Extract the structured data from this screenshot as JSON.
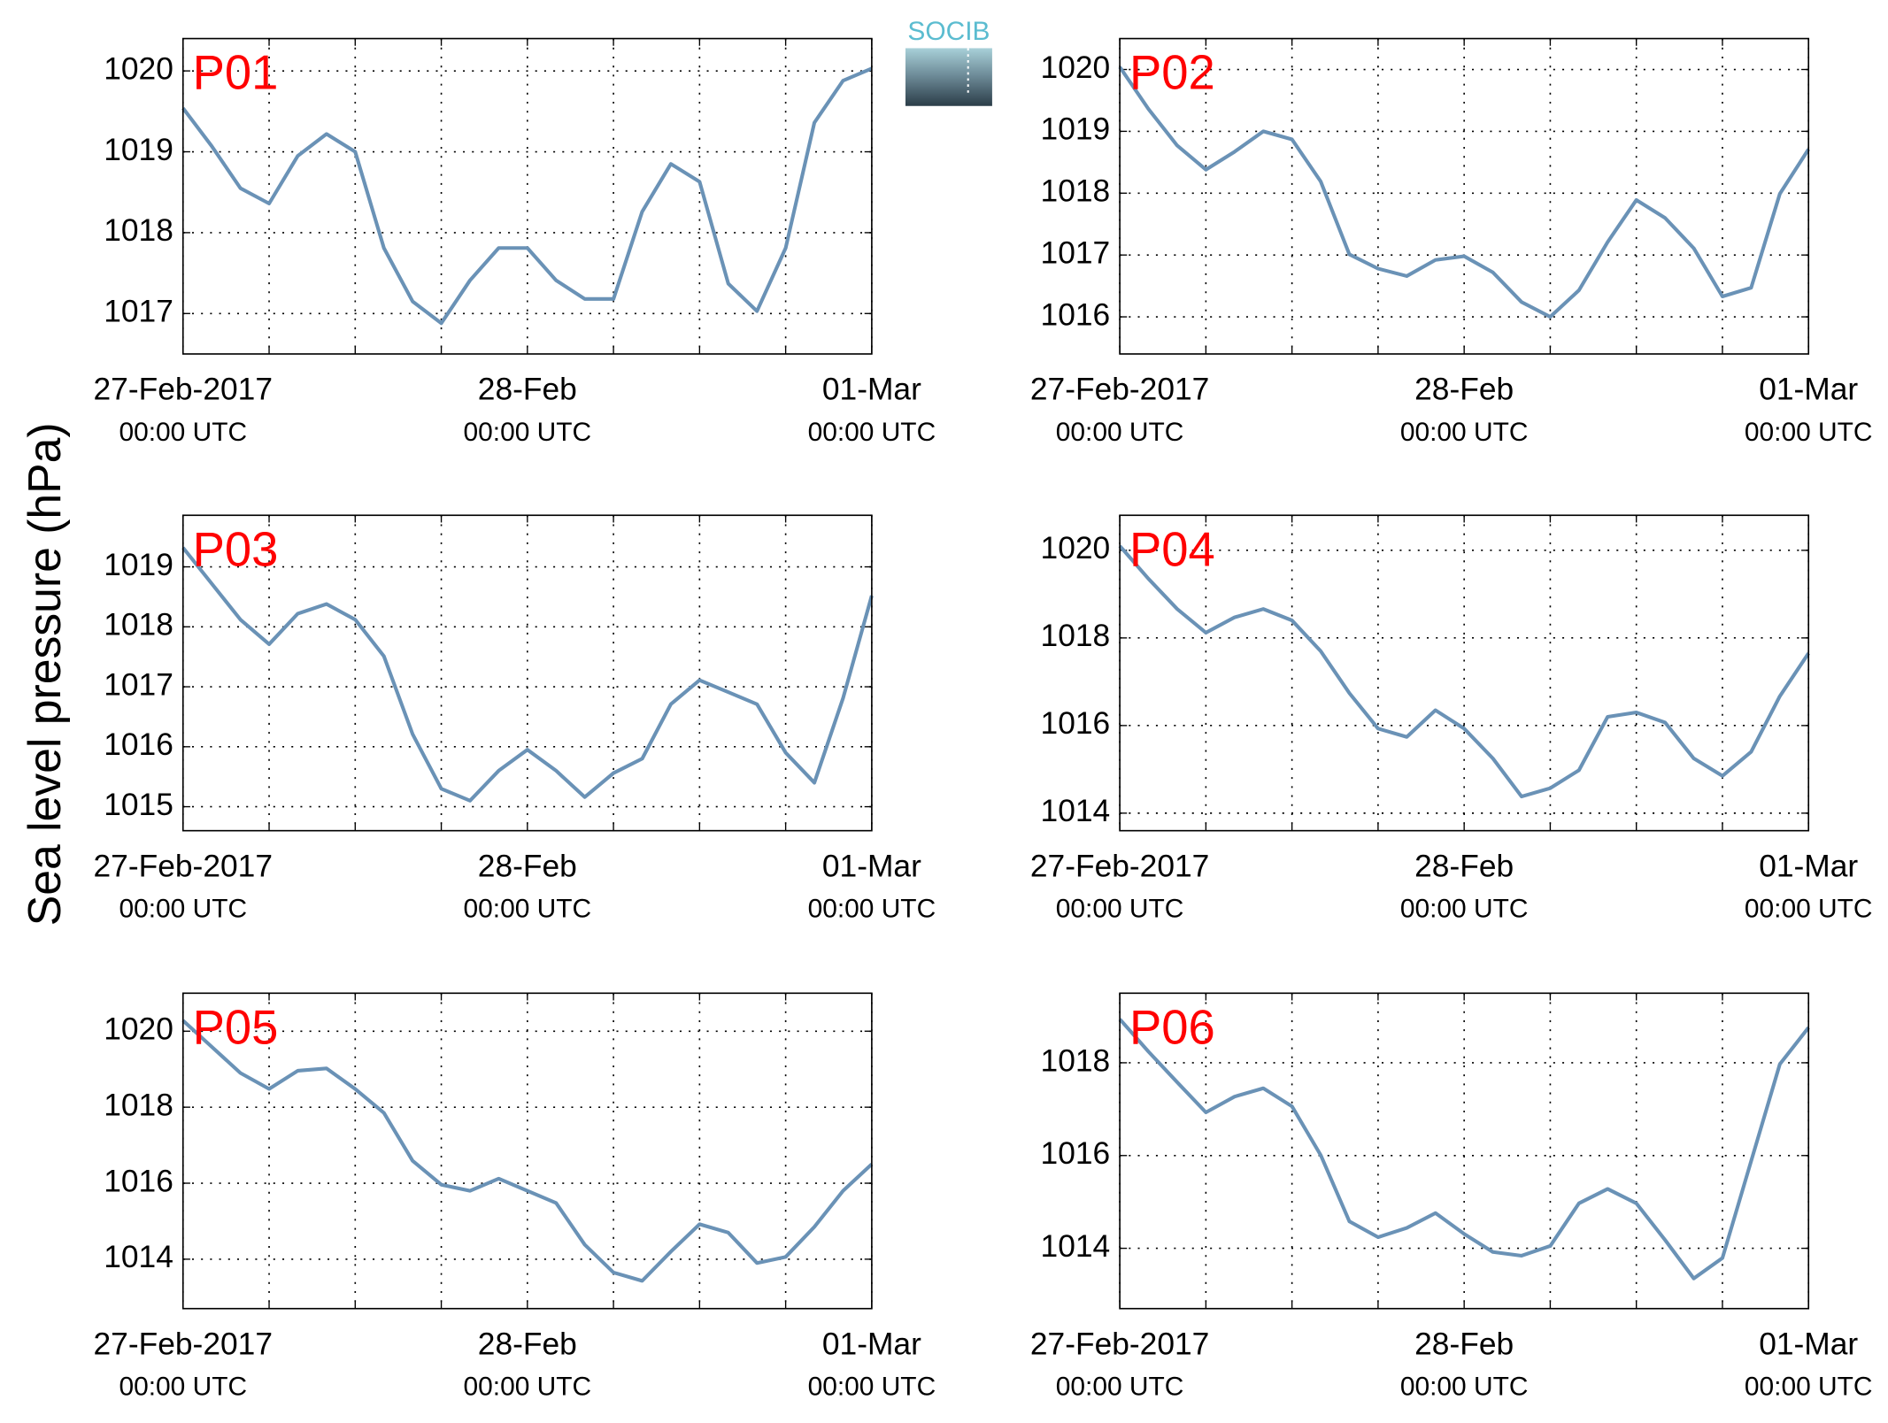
{
  "ylabel": "Sea level pressure (hPa)",
  "logo": "SOCIB",
  "chart_data": [
    {
      "type": "line",
      "title": "P01",
      "color": "#6a92b6",
      "grid": true,
      "x": [
        "2017-02-27T00:00",
        "2017-02-27T02:00",
        "2017-02-27T04:00",
        "2017-02-27T06:00",
        "2017-02-27T08:00",
        "2017-02-27T10:00",
        "2017-02-27T12:00",
        "2017-02-27T14:00",
        "2017-02-27T16:00",
        "2017-02-27T18:00",
        "2017-02-27T20:00",
        "2017-02-27T22:00",
        "2017-02-28T00:00",
        "2017-02-28T02:00",
        "2017-02-28T04:00",
        "2017-02-28T06:00",
        "2017-02-28T08:00",
        "2017-02-28T10:00",
        "2017-02-28T12:00",
        "2017-02-28T14:00",
        "2017-02-28T16:00",
        "2017-02-28T18:00",
        "2017-02-28T20:00",
        "2017-02-28T22:00",
        "2017-03-01T00:00"
      ],
      "series": [
        {
          "color": "#6a92b6",
          "values": [
            1019.54,
            1019.07,
            1018.55,
            1018.36,
            1018.95,
            1019.22,
            1019.0,
            1017.81,
            1017.15,
            1016.88,
            1017.41,
            1017.81,
            1017.81,
            1017.41,
            1017.18,
            1017.18,
            1018.26,
            1018.85,
            1018.63,
            1017.37,
            1017.03,
            1017.81,
            1019.36,
            1019.88,
            1020.03
          ]
        }
      ],
      "xlim": [
        "2017-02-27T00:00",
        "2017-03-01T00:00"
      ],
      "xticks": [
        {
          "value": "2017-02-27T00:00",
          "label": [
            "27-Feb-2017",
            "00:00 UTC"
          ]
        },
        {
          "value": "2017-02-27T06:00",
          "label": null
        },
        {
          "value": "2017-02-27T12:00",
          "label": null
        },
        {
          "value": "2017-02-27T18:00",
          "label": null
        },
        {
          "value": "2017-02-28T00:00",
          "label": [
            "28-Feb",
            "00:00 UTC"
          ]
        },
        {
          "value": "2017-02-28T06:00",
          "label": null
        },
        {
          "value": "2017-02-28T12:00",
          "label": null
        },
        {
          "value": "2017-02-28T18:00",
          "label": null
        },
        {
          "value": "2017-03-01T00:00",
          "label": [
            "01-Mar",
            "00:00 UTC"
          ]
        }
      ],
      "ylim": [
        1016.5,
        1020.4
      ],
      "yticks": [
        1017,
        1018,
        1019,
        1020
      ]
    },
    {
      "type": "line",
      "title": "P02",
      "color": "#6a92b6",
      "grid": true,
      "x": [
        "2017-02-27T00:00",
        "2017-02-27T02:00",
        "2017-02-27T04:00",
        "2017-02-27T06:00",
        "2017-02-27T08:00",
        "2017-02-27T10:00",
        "2017-02-27T12:00",
        "2017-02-27T14:00",
        "2017-02-27T16:00",
        "2017-02-27T18:00",
        "2017-02-27T20:00",
        "2017-02-27T22:00",
        "2017-02-28T00:00",
        "2017-02-28T02:00",
        "2017-02-28T04:00",
        "2017-02-28T06:00",
        "2017-02-28T08:00",
        "2017-02-28T10:00",
        "2017-02-28T12:00",
        "2017-02-28T14:00",
        "2017-02-28T16:00",
        "2017-02-28T18:00",
        "2017-02-28T20:00",
        "2017-02-28T22:00",
        "2017-03-01T00:00"
      ],
      "series": [
        {
          "color": "#6a92b6",
          "values": [
            1020.04,
            1019.36,
            1018.77,
            1018.38,
            1018.67,
            1019.0,
            1018.87,
            1018.19,
            1017.01,
            1016.78,
            1016.66,
            1016.92,
            1016.98,
            1016.72,
            1016.24,
            1016.0,
            1016.43,
            1017.21,
            1017.89,
            1017.6,
            1017.11,
            1016.33,
            1016.47,
            1017.99,
            1018.71
          ]
        }
      ],
      "xlim": [
        "2017-02-27T00:00",
        "2017-03-01T00:00"
      ],
      "xticks": [
        {
          "value": "2017-02-27T00:00",
          "label": [
            "27-Feb-2017",
            "00:00 UTC"
          ]
        },
        {
          "value": "2017-02-27T06:00",
          "label": null
        },
        {
          "value": "2017-02-27T12:00",
          "label": null
        },
        {
          "value": "2017-02-27T18:00",
          "label": null
        },
        {
          "value": "2017-02-28T00:00",
          "label": [
            "28-Feb",
            "00:00 UTC"
          ]
        },
        {
          "value": "2017-02-28T06:00",
          "label": null
        },
        {
          "value": "2017-02-28T12:00",
          "label": null
        },
        {
          "value": "2017-02-28T18:00",
          "label": null
        },
        {
          "value": "2017-03-01T00:00",
          "label": [
            "01-Mar",
            "00:00 UTC"
          ]
        }
      ],
      "ylim": [
        1015.4,
        1020.5
      ],
      "yticks": [
        1016,
        1017,
        1018,
        1019,
        1020
      ]
    },
    {
      "type": "line",
      "title": "P03",
      "color": "#6a92b6",
      "grid": true,
      "x": [
        "2017-02-27T00:00",
        "2017-02-27T02:00",
        "2017-02-27T04:00",
        "2017-02-27T06:00",
        "2017-02-27T08:00",
        "2017-02-27T10:00",
        "2017-02-27T12:00",
        "2017-02-27T14:00",
        "2017-02-27T16:00",
        "2017-02-27T18:00",
        "2017-02-27T20:00",
        "2017-02-27T22:00",
        "2017-02-28T00:00",
        "2017-02-28T02:00",
        "2017-02-28T04:00",
        "2017-02-28T06:00",
        "2017-02-28T08:00",
        "2017-02-28T10:00",
        "2017-02-28T12:00",
        "2017-02-28T14:00",
        "2017-02-28T16:00",
        "2017-02-28T18:00",
        "2017-02-28T20:00",
        "2017-02-28T22:00",
        "2017-03-01T00:00"
      ],
      "series": [
        {
          "color": "#6a92b6",
          "values": [
            1019.32,
            1018.72,
            1018.12,
            1017.71,
            1018.22,
            1018.38,
            1018.12,
            1017.51,
            1016.21,
            1015.3,
            1015.1,
            1015.6,
            1015.95,
            1015.6,
            1015.16,
            1015.56,
            1015.8,
            1016.71,
            1017.11,
            1016.91,
            1016.71,
            1015.9,
            1015.4,
            1016.81,
            1018.52
          ]
        }
      ],
      "xlim": [
        "2017-02-27T00:00",
        "2017-03-01T00:00"
      ],
      "xticks": [
        {
          "value": "2017-02-27T00:00",
          "label": [
            "27-Feb-2017",
            "00:00 UTC"
          ]
        },
        {
          "value": "2017-02-27T06:00",
          "label": null
        },
        {
          "value": "2017-02-27T12:00",
          "label": null
        },
        {
          "value": "2017-02-27T18:00",
          "label": null
        },
        {
          "value": "2017-02-28T00:00",
          "label": [
            "28-Feb",
            "00:00 UTC"
          ]
        },
        {
          "value": "2017-02-28T06:00",
          "label": null
        },
        {
          "value": "2017-02-28T12:00",
          "label": null
        },
        {
          "value": "2017-02-28T18:00",
          "label": null
        },
        {
          "value": "2017-03-01T00:00",
          "label": [
            "01-Mar",
            "00:00 UTC"
          ]
        }
      ],
      "ylim": [
        1014.6,
        1019.86
      ],
      "yticks": [
        1015,
        1016,
        1017,
        1018,
        1019
      ]
    },
    {
      "type": "line",
      "title": "P04",
      "color": "#6a92b6",
      "grid": true,
      "x": [
        "2017-02-27T00:00",
        "2017-02-27T02:00",
        "2017-02-27T04:00",
        "2017-02-27T06:00",
        "2017-02-27T08:00",
        "2017-02-27T10:00",
        "2017-02-27T12:00",
        "2017-02-27T14:00",
        "2017-02-27T16:00",
        "2017-02-27T18:00",
        "2017-02-27T20:00",
        "2017-02-27T22:00",
        "2017-02-28T00:00",
        "2017-02-28T02:00",
        "2017-02-28T04:00",
        "2017-02-28T06:00",
        "2017-02-28T08:00",
        "2017-02-28T10:00",
        "2017-02-28T12:00",
        "2017-02-28T14:00",
        "2017-02-28T16:00",
        "2017-02-28T18:00",
        "2017-02-28T20:00",
        "2017-02-28T22:00",
        "2017-03-01T00:00"
      ],
      "series": [
        {
          "color": "#6a92b6",
          "values": [
            1020.1,
            1019.35,
            1018.66,
            1018.12,
            1018.47,
            1018.66,
            1018.4,
            1017.7,
            1016.74,
            1015.93,
            1015.74,
            1016.35,
            1015.93,
            1015.25,
            1014.38,
            1014.57,
            1014.98,
            1016.2,
            1016.3,
            1016.07,
            1015.25,
            1014.85,
            1015.4,
            1016.67,
            1017.65
          ]
        }
      ],
      "xlim": [
        "2017-02-27T00:00",
        "2017-03-01T00:00"
      ],
      "xticks": [
        {
          "value": "2017-02-27T00:00",
          "label": [
            "27-Feb-2017",
            "00:00 UTC"
          ]
        },
        {
          "value": "2017-02-27T06:00",
          "label": null
        },
        {
          "value": "2017-02-27T12:00",
          "label": null
        },
        {
          "value": "2017-02-27T18:00",
          "label": null
        },
        {
          "value": "2017-02-28T00:00",
          "label": [
            "28-Feb",
            "00:00 UTC"
          ]
        },
        {
          "value": "2017-02-28T06:00",
          "label": null
        },
        {
          "value": "2017-02-28T12:00",
          "label": null
        },
        {
          "value": "2017-02-28T18:00",
          "label": null
        },
        {
          "value": "2017-03-01T00:00",
          "label": [
            "01-Mar",
            "00:00 UTC"
          ]
        }
      ],
      "ylim": [
        1013.6,
        1020.8
      ],
      "yticks": [
        1014,
        1016,
        1018,
        1020
      ]
    },
    {
      "type": "line",
      "title": "P05",
      "color": "#6a92b6",
      "grid": true,
      "x": [
        "2017-02-27T00:00",
        "2017-02-27T02:00",
        "2017-02-27T04:00",
        "2017-02-27T06:00",
        "2017-02-27T08:00",
        "2017-02-27T10:00",
        "2017-02-27T12:00",
        "2017-02-27T14:00",
        "2017-02-27T16:00",
        "2017-02-27T18:00",
        "2017-02-27T20:00",
        "2017-02-27T22:00",
        "2017-02-28T00:00",
        "2017-02-28T02:00",
        "2017-02-28T04:00",
        "2017-02-28T06:00",
        "2017-02-28T08:00",
        "2017-02-28T10:00",
        "2017-02-28T12:00",
        "2017-02-28T14:00",
        "2017-02-28T16:00",
        "2017-02-28T18:00",
        "2017-02-28T20:00",
        "2017-02-28T22:00",
        "2017-03-01T00:00"
      ],
      "series": [
        {
          "color": "#6a92b6",
          "values": [
            1020.28,
            1019.59,
            1018.9,
            1018.48,
            1018.96,
            1019.02,
            1018.48,
            1017.85,
            1016.59,
            1015.96,
            1015.8,
            1016.12,
            1015.8,
            1015.48,
            1014.38,
            1013.65,
            1013.43,
            1014.2,
            1014.92,
            1014.7,
            1013.9,
            1014.06,
            1014.85,
            1015.8,
            1016.5
          ]
        }
      ],
      "xlim": [
        "2017-02-27T00:00",
        "2017-03-01T00:00"
      ],
      "xticks": [
        {
          "value": "2017-02-27T00:00",
          "label": [
            "27-Feb-2017",
            "00:00 UTC"
          ]
        },
        {
          "value": "2017-02-27T06:00",
          "label": null
        },
        {
          "value": "2017-02-27T12:00",
          "label": null
        },
        {
          "value": "2017-02-27T18:00",
          "label": null
        },
        {
          "value": "2017-02-28T00:00",
          "label": [
            "28-Feb",
            "00:00 UTC"
          ]
        },
        {
          "value": "2017-02-28T06:00",
          "label": null
        },
        {
          "value": "2017-02-28T12:00",
          "label": null
        },
        {
          "value": "2017-02-28T18:00",
          "label": null
        },
        {
          "value": "2017-03-01T00:00",
          "label": [
            "01-Mar",
            "00:00 UTC"
          ]
        }
      ],
      "ylim": [
        1012.7,
        1021
      ],
      "yticks": [
        1014,
        1016,
        1018,
        1020
      ]
    },
    {
      "type": "line",
      "title": "P06",
      "color": "#6a92b6",
      "grid": true,
      "x": [
        "2017-02-27T00:00",
        "2017-02-27T02:00",
        "2017-02-27T04:00",
        "2017-02-27T06:00",
        "2017-02-27T08:00",
        "2017-02-27T10:00",
        "2017-02-27T12:00",
        "2017-02-27T14:00",
        "2017-02-27T16:00",
        "2017-02-27T18:00",
        "2017-02-27T20:00",
        "2017-02-27T22:00",
        "2017-02-28T00:00",
        "2017-02-28T02:00",
        "2017-02-28T04:00",
        "2017-02-28T06:00",
        "2017-02-28T08:00",
        "2017-02-28T10:00",
        "2017-02-28T12:00",
        "2017-02-28T14:00",
        "2017-02-28T16:00",
        "2017-02-28T18:00",
        "2017-02-28T20:00",
        "2017-02-28T22:00",
        "2017-03-01T00:00"
      ],
      "series": [
        {
          "color": "#6a92b6",
          "values": [
            1018.94,
            1018.24,
            1017.58,
            1016.93,
            1017.27,
            1017.45,
            1017.06,
            1016.01,
            1014.58,
            1014.24,
            1014.44,
            1014.76,
            1014.31,
            1013.92,
            1013.84,
            1014.05,
            1014.97,
            1015.28,
            1014.97,
            1014.18,
            1013.35,
            1013.79,
            1015.88,
            1017.97,
            1018.76
          ]
        }
      ],
      "xlim": [
        "2017-02-27T00:00",
        "2017-03-01T00:00"
      ],
      "xticks": [
        {
          "value": "2017-02-27T00:00",
          "label": [
            "27-Feb-2017",
            "00:00 UTC"
          ]
        },
        {
          "value": "2017-02-27T06:00",
          "label": null
        },
        {
          "value": "2017-02-27T12:00",
          "label": null
        },
        {
          "value": "2017-02-27T18:00",
          "label": null
        },
        {
          "value": "2017-02-28T00:00",
          "label": [
            "28-Feb",
            "00:00 UTC"
          ]
        },
        {
          "value": "2017-02-28T06:00",
          "label": null
        },
        {
          "value": "2017-02-28T12:00",
          "label": null
        },
        {
          "value": "2017-02-28T18:00",
          "label": null
        },
        {
          "value": "2017-03-01T00:00",
          "label": [
            "01-Mar",
            "00:00 UTC"
          ]
        }
      ],
      "ylim": [
        1012.7,
        1019.5
      ],
      "yticks": [
        1014,
        1016,
        1018
      ]
    }
  ]
}
